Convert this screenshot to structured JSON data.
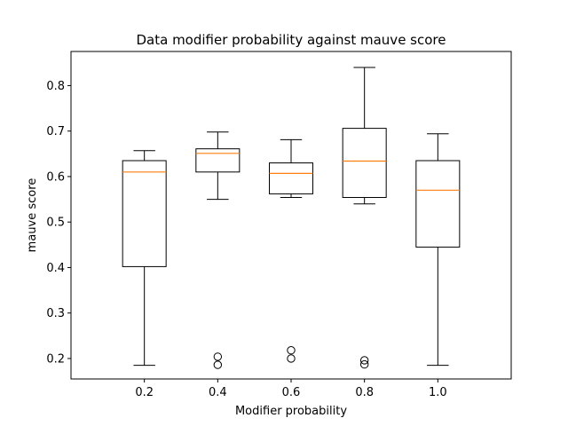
{
  "chart_data": {
    "type": "box",
    "title": "Data modifier probability against mauve score",
    "xlabel": "Modifier probability",
    "ylabel": "mauve score",
    "categories": [
      "0.2",
      "0.4",
      "0.6",
      "0.8",
      "1.0"
    ],
    "y_ticks": [
      "0.2",
      "0.3",
      "0.4",
      "0.5",
      "0.6",
      "0.7",
      "0.8"
    ],
    "ylim": [
      0.155,
      0.875
    ],
    "grid": false,
    "colors": {
      "box": "#000000",
      "median": "#ff7f0e",
      "outlier": "#000000"
    },
    "boxes": [
      {
        "whisker_low": 0.185,
        "q1": 0.402,
        "median": 0.61,
        "q3": 0.635,
        "whisker_high": 0.657,
        "outliers": []
      },
      {
        "whisker_low": 0.55,
        "q1": 0.61,
        "median": 0.651,
        "q3": 0.661,
        "whisker_high": 0.698,
        "outliers": [
          0.204,
          0.186
        ]
      },
      {
        "whisker_low": 0.554,
        "q1": 0.562,
        "median": 0.607,
        "q3": 0.63,
        "whisker_high": 0.681,
        "outliers": [
          0.218,
          0.2
        ]
      },
      {
        "whisker_low": 0.54,
        "q1": 0.554,
        "median": 0.634,
        "q3": 0.706,
        "whisker_high": 0.84,
        "outliers": [
          0.196,
          0.187
        ]
      },
      {
        "whisker_low": 0.185,
        "q1": 0.445,
        "median": 0.57,
        "q3": 0.635,
        "whisker_high": 0.694,
        "outliers": []
      }
    ]
  }
}
